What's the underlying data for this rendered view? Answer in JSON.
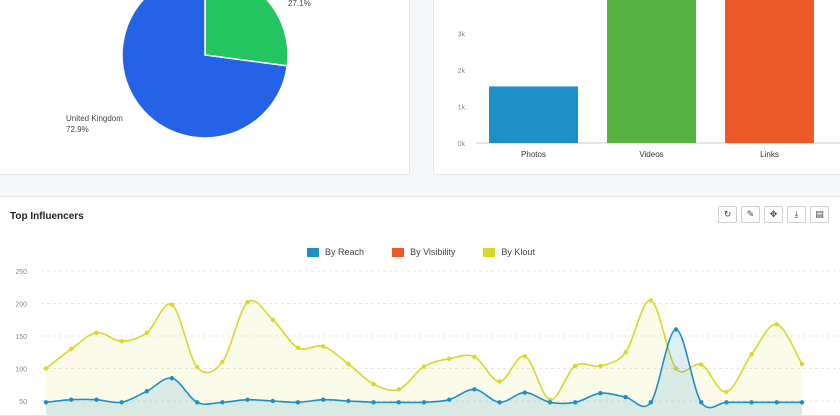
{
  "pie": {
    "chart_data": {
      "type": "pie",
      "slices": [
        {
          "label": "United Kingdom",
          "pct_label": "72.9%",
          "value": 72.9,
          "color": "#2563e6"
        },
        {
          "label": "",
          "pct_label": "27.1%",
          "value": 27.1,
          "color": "#22c55e"
        }
      ]
    }
  },
  "bar": {
    "chart_data": {
      "type": "bar",
      "categories": [
        "Photos",
        "Videos",
        "Links"
      ],
      "values": [
        1550,
        4400,
        4400
      ],
      "colors": [
        "#1e8fc6",
        "#54b33e",
        "#ec5a2a"
      ],
      "yticks": [
        "0k",
        "1k",
        "2k",
        "3k"
      ],
      "ylim": [
        0,
        4000
      ]
    }
  },
  "influencers": {
    "title": "Top Influencers",
    "toolbar": {
      "refresh_icon": "↻",
      "edit_icon": "✎",
      "move_icon": "✥",
      "download_icon": "⤓",
      "table_icon": "▤"
    },
    "legend": [
      {
        "name": "By Reach",
        "color": "#1e8fc6"
      },
      {
        "name": "By Visibility",
        "color": "#ec5a2a"
      },
      {
        "name": "By Klout",
        "color": "#d8d82a"
      }
    ],
    "chart_data": {
      "type": "area",
      "yticks": [
        "50",
        "100",
        "150",
        "200",
        "250"
      ],
      "ylim": [
        50,
        250
      ],
      "series": [
        {
          "name": "By Klout",
          "color": "#d8d82a",
          "values": [
            100,
            130,
            155,
            142,
            155,
            198,
            102,
            110,
            202,
            175,
            132,
            134,
            107,
            76,
            68,
            103,
            115,
            118,
            80,
            119,
            52,
            104,
            104,
            125,
            205,
            100,
            106,
            64,
            122,
            168,
            107
          ]
        },
        {
          "name": "By Reach",
          "color": "#1e8fc6",
          "values": [
            48,
            52,
            52,
            48,
            65,
            85,
            48,
            48,
            52,
            50,
            48,
            52,
            50,
            48,
            48,
            48,
            52,
            68,
            48,
            63,
            48,
            48,
            62,
            56,
            48,
            160,
            48,
            48,
            48,
            48,
            48
          ]
        }
      ]
    }
  }
}
